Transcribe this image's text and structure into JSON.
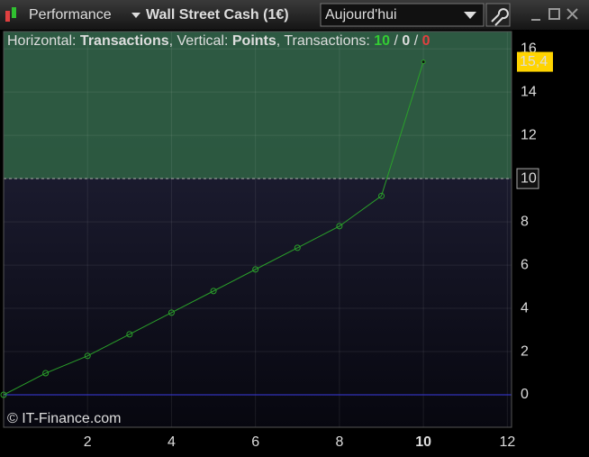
{
  "toolbar": {
    "indicator": "Performance",
    "instrument": "Wall Street Cash (1€)",
    "period": "Aujourd'hui"
  },
  "info": {
    "h_label": "Horizontal: ",
    "h_value": "Transactions",
    "v_label": ", Vertical: ",
    "v_value": "Points",
    "t_label": ", Transactions: ",
    "t_win": "10",
    "sep1": " / ",
    "t_even": "0",
    "sep2": " / ",
    "t_loss": "0"
  },
  "chart_data": {
    "type": "line",
    "x": [
      0,
      1,
      2,
      3,
      4,
      5,
      6,
      7,
      8,
      9,
      10
    ],
    "values": [
      0,
      1.0,
      1.8,
      2.8,
      3.8,
      4.8,
      5.8,
      6.8,
      7.8,
      9.2,
      15.4
    ],
    "value_labels": [
      null,
      null,
      null,
      null,
      null,
      null,
      null,
      null,
      null,
      null,
      "15,4"
    ],
    "color": "#2aa02a",
    "xlim": [
      0,
      12.1
    ],
    "ylim": [
      -1.5,
      16.8
    ],
    "xticks": [
      2,
      4,
      6,
      8,
      10,
      12
    ],
    "yticks": [
      0,
      2,
      4,
      6,
      8,
      10,
      12,
      14,
      16
    ],
    "threshold": 10,
    "highlight_x": 10,
    "grid": true,
    "watermark": "© IT-Finance.com"
  }
}
